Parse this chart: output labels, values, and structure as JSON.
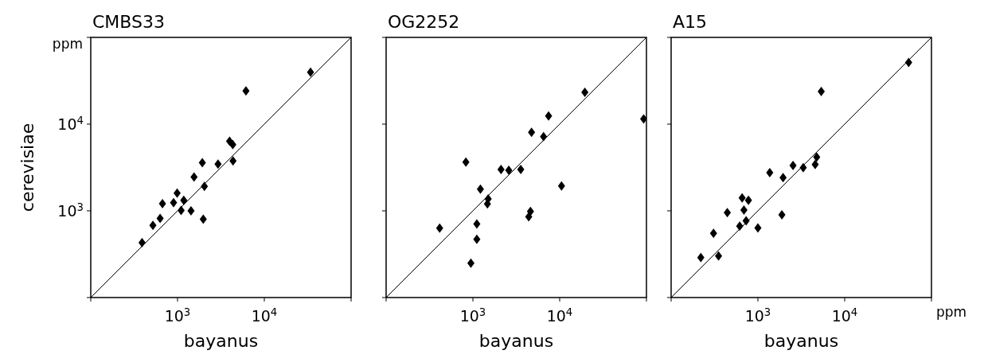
{
  "chart_data": [
    {
      "type": "scatter",
      "title": "CMBS33",
      "xlabel": "bayanus",
      "ylabel": "cerevisiae",
      "log": "xy",
      "xlim": [
        100,
        100000
      ],
      "ylim": [
        100,
        100000
      ],
      "xticks": [
        {
          "value": 100,
          "label": null
        },
        {
          "value": 1000,
          "label": "10$^{3}$"
        },
        {
          "value": 10000,
          "label": "10$^{4}$"
        },
        {
          "value": 100000,
          "label": null
        }
      ],
      "yticks": [
        {
          "value": 100,
          "label": null
        },
        {
          "value": 1000,
          "label": "10$^{3}$"
        },
        {
          "value": 10000,
          "label": "10$^{4}$"
        },
        {
          "value": 100000,
          "label": null
        }
      ],
      "annotations": [
        "ppm"
      ],
      "series": [
        {
          "color": "#000000",
          "marker": "diamond",
          "x": [
            390,
            520,
            630,
            670,
            900,
            990,
            1100,
            1180,
            1430,
            1550,
            1930,
            1980,
            2040,
            2930,
            3980,
            4330,
            4360,
            6140,
            34100
          ],
          "values": [
            430,
            680,
            820,
            1210,
            1240,
            1600,
            1010,
            1320,
            1000,
            2460,
            3590,
            800,
            1910,
            3460,
            6350,
            5810,
            3770,
            24100,
            39700
          ]
        },
        {
          "type": "line",
          "color": "#000000",
          "x": [
            100,
            100000
          ],
          "values": [
            100,
            100000
          ]
        }
      ]
    },
    {
      "type": "scatter",
      "title": "OG2252",
      "xlabel": "bayanus",
      "log": "xy",
      "xlim": [
        100,
        100000
      ],
      "ylim": [
        100,
        100000
      ],
      "xticks": [
        {
          "value": 100,
          "label": null
        },
        {
          "value": 1000,
          "label": "10$^{3}$"
        },
        {
          "value": 10000,
          "label": "10$^{4}$"
        },
        {
          "value": 100000,
          "label": null
        }
      ],
      "yticks": [
        {
          "value": 100,
          "label": null
        },
        {
          "value": 1000,
          "label": null
        },
        {
          "value": 10000,
          "label": null
        },
        {
          "value": 100000,
          "label": null
        }
      ],
      "tick_labels": "x",
      "series": [
        {
          "color": "#000000",
          "marker": "diamond",
          "x": [
            414,
            830,
            948,
            1110,
            1110,
            1220,
            1500,
            1470,
            2110,
            2590,
            3560,
            4400,
            4610,
            4740,
            6520,
            7450,
            10500,
            19500,
            92900
          ],
          "values": [
            631,
            3650,
            249,
            705,
            469,
            1780,
            1370,
            1200,
            3000,
            2940,
            3000,
            853,
            982,
            8070,
            7160,
            12400,
            1940,
            23300,
            11500
          ]
        },
        {
          "type": "line",
          "color": "#000000",
          "x": [
            100,
            100000
          ],
          "values": [
            100,
            100000
          ]
        }
      ]
    },
    {
      "type": "scatter",
      "title": "A15",
      "xlabel": "bayanus",
      "log": "xy",
      "xlim": [
        100,
        100000
      ],
      "ylim": [
        100,
        100000
      ],
      "xticks": [
        {
          "value": 100,
          "label": null
        },
        {
          "value": 1000,
          "label": "10$^{3}$"
        },
        {
          "value": 10000,
          "label": "10$^{4}$"
        },
        {
          "value": 100000,
          "label": null
        }
      ],
      "yticks": [
        {
          "value": 100,
          "label": null
        },
        {
          "value": 1000,
          "label": null
        },
        {
          "value": 10000,
          "label": null
        },
        {
          "value": 100000,
          "label": null
        }
      ],
      "tick_labels": "x",
      "annotations": [
        "ppm"
      ],
      "series": [
        {
          "color": "#000000",
          "marker": "diamond",
          "x": [
            220,
            352,
            308,
            444,
            617,
            658,
            690,
            731,
            778,
            1000,
            1370,
            1890,
            1950,
            2540,
            3330,
            4570,
            4760,
            5370,
            54600
          ],
          "values": [
            289,
            301,
            552,
            955,
            667,
            1410,
            1020,
            767,
            1320,
            635,
            2750,
            902,
            2410,
            3330,
            3150,
            3430,
            4170,
            23800,
            51300
          ]
        },
        {
          "type": "line",
          "color": "#000000",
          "x": [
            100,
            100000
          ],
          "values": [
            100,
            100000
          ]
        }
      ]
    }
  ]
}
